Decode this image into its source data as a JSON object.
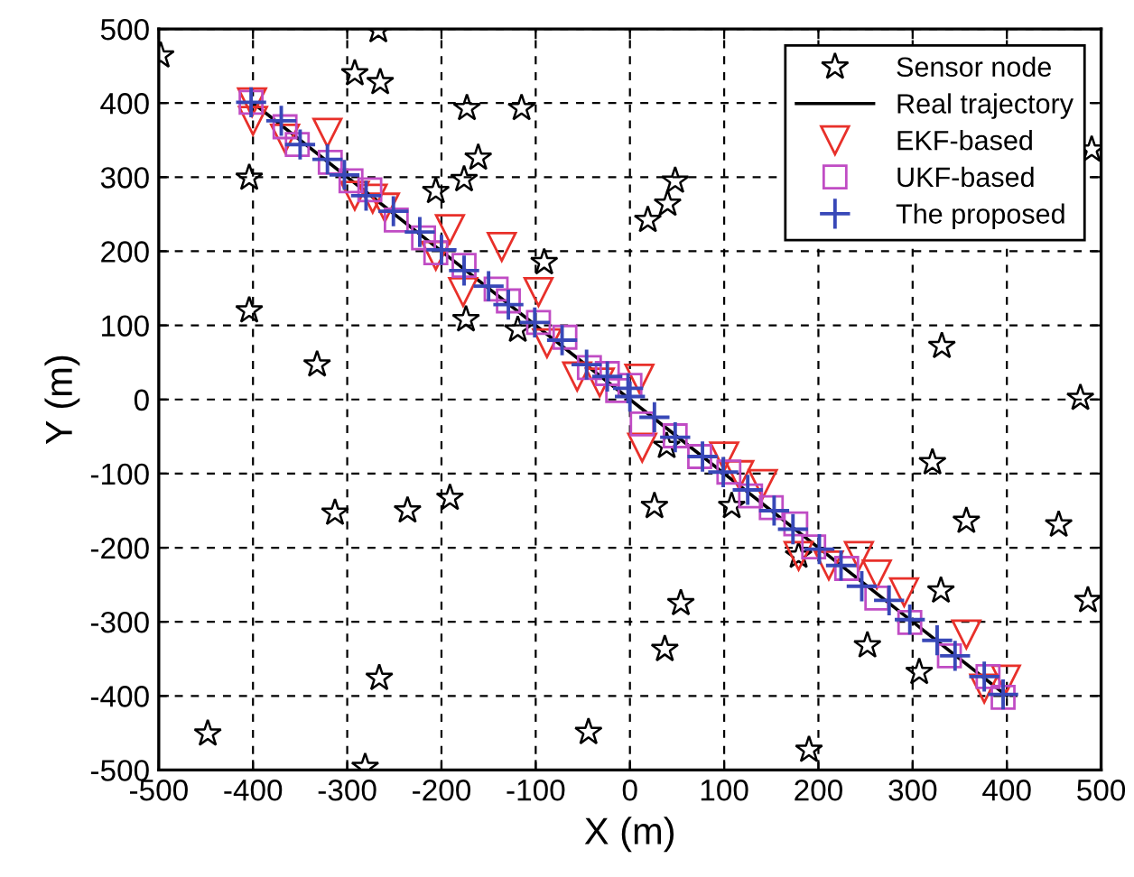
{
  "chart_data": {
    "type": "scatter",
    "xlabel": "X (m)",
    "ylabel": "Y (m)",
    "xlim": [
      -500,
      500
    ],
    "ylim": [
      -500,
      500
    ],
    "xticks": [
      -500,
      -400,
      -300,
      -200,
      -100,
      0,
      100,
      200,
      300,
      400,
      500
    ],
    "yticks": [
      -500,
      -400,
      -300,
      -200,
      -100,
      0,
      100,
      200,
      300,
      400,
      500
    ],
    "grid": true,
    "legend": "top right",
    "series": [
      {
        "name": "Sensor node",
        "marker": "star",
        "color": "#000000",
        "x": [
          -498,
          -404,
          -404,
          -332,
          -292,
          -267,
          -265,
          -206,
          -176,
          -173,
          -161,
          -115,
          -91,
          -174,
          -119,
          48,
          40,
          19,
          490,
          331,
          478,
          -313,
          -236,
          -191,
          -266,
          -281,
          -448,
          -44,
          321,
          357,
          455,
          486,
          330,
          252,
          307,
          190,
          26,
          108,
          54,
          37,
          39,
          179
        ],
        "values": [
          464,
          299,
          120,
          47,
          440,
          498,
          428,
          281,
          297,
          393,
          326,
          393,
          185,
          108,
          94,
          295,
          264,
          242,
          337,
          72,
          2,
          -153,
          -150,
          -133,
          -376,
          -496,
          -451,
          -449,
          -85,
          -164,
          -169,
          -271,
          -258,
          -332,
          -368,
          -473,
          -144,
          -144,
          -275,
          -337,
          -63,
          -211
        ]
      },
      {
        "name": "Real trajectory",
        "type": "line",
        "marker": "none",
        "color": "#000000",
        "x": [
          -400,
          400
        ],
        "values": [
          400,
          -400
        ]
      },
      {
        "name": "EKF-based",
        "marker": "triangle",
        "color": "#e8302a",
        "x": [
          -401,
          -400,
          -366,
          -321,
          -292,
          -273,
          -260,
          -191,
          -136,
          -206,
          -177,
          -97,
          -88,
          -56,
          -32,
          10,
          13,
          100,
          116,
          141,
          179,
          211,
          243,
          262,
          291,
          357,
          376,
          399
        ],
        "values": [
          401,
          376,
          352,
          360,
          275,
          271,
          259,
          230,
          206,
          194,
          145,
          145,
          76,
          31,
          23,
          28,
          -65,
          -77,
          -102,
          -114,
          -211,
          -224,
          -211,
          -236,
          -260,
          -317,
          -390,
          -378
        ]
      },
      {
        "name": "UKF-based",
        "marker": "square",
        "color": "#c04cc4",
        "x": [
          -402,
          -366,
          -353,
          -318,
          -296,
          -276,
          -248,
          -219,
          -206,
          -176,
          -142,
          -129,
          -97,
          -69,
          -43,
          -24,
          0,
          -13,
          13,
          48,
          74,
          105,
          128,
          150,
          176,
          195,
          230,
          262,
          297,
          339,
          380,
          396
        ],
        "values": [
          401,
          368,
          344,
          320,
          295,
          283,
          242,
          218,
          198,
          181,
          149,
          133,
          104,
          84,
          43,
          35,
          19,
          12,
          -33,
          -49,
          -77,
          -98,
          -130,
          -146,
          -168,
          -199,
          -228,
          -268,
          -301,
          -346,
          -374,
          -402
        ]
      },
      {
        "name": "The proposed",
        "marker": "cross",
        "color": "#3848b8",
        "x": [
          -402,
          -370,
          -350,
          -321,
          -303,
          -280,
          -251,
          -223,
          -200,
          -176,
          -150,
          -129,
          -101,
          -72,
          -46,
          -24,
          -2,
          0,
          26,
          48,
          77,
          99,
          125,
          153,
          173,
          201,
          224,
          246,
          275,
          297,
          326,
          345,
          376,
          396
        ],
        "values": [
          401,
          376,
          344,
          324,
          303,
          275,
          254,
          226,
          202,
          174,
          153,
          128,
          104,
          80,
          47,
          31,
          15,
          4,
          -24,
          -51,
          -77,
          -98,
          -122,
          -150,
          -175,
          -202,
          -224,
          -252,
          -271,
          -297,
          -325,
          -346,
          -374,
          -398
        ]
      }
    ]
  }
}
